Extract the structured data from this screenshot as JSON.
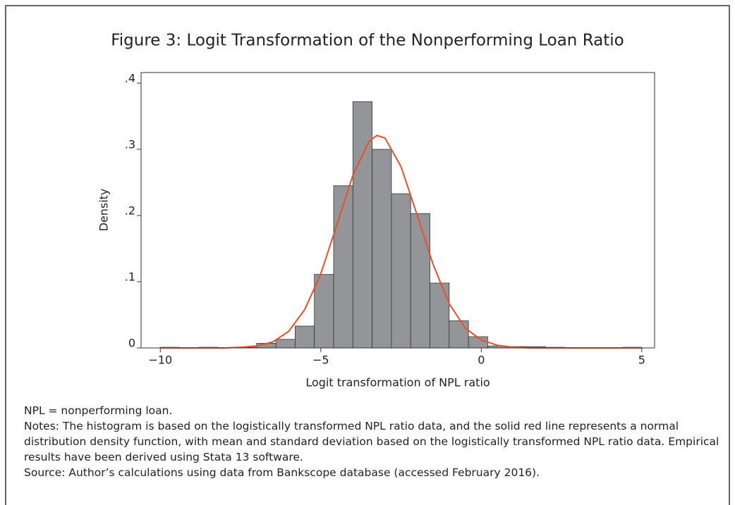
{
  "chart_data": {
    "type": "histogram",
    "title": "Figure 3: Logit Transformation of the Nonperforming Loan Ratio",
    "xlabel": "Logit transformation of NPL ratio",
    "ylabel": "Density",
    "bins": [
      -10,
      -9.4,
      -8.8,
      -8.2,
      -7.6,
      -7.0,
      -6.4,
      -5.8,
      -5.2,
      -4.6,
      -4.0,
      -3.4,
      -2.8,
      -2.2,
      -1.6,
      -1.0,
      -0.4,
      0.2,
      0.8,
      1.4,
      2.0,
      2.6,
      3.2,
      3.8,
      4.4,
      5.0
    ],
    "values": [
      0.001,
      0,
      0.001,
      0,
      0.001,
      0.007,
      0.013,
      0.033,
      0.111,
      0.245,
      0.372,
      0.3,
      0.233,
      0.203,
      0.098,
      0.041,
      0.017,
      0.003,
      0.002,
      0.002,
      0.001,
      0,
      0,
      0,
      0.001
    ],
    "color": "#939598",
    "curve": {
      "color": "#e8502b",
      "x": [
        -10,
        -9.5,
        -9,
        -8.5,
        -8,
        -7.5,
        -7,
        -6.5,
        -6,
        -5.5,
        -5,
        -4.5,
        -4,
        -3.5,
        -3.25,
        -3,
        -2.5,
        -2,
        -1.5,
        -1,
        -0.5,
        0,
        0.5,
        1,
        1.5,
        2,
        2.5,
        3,
        3.5,
        4,
        4.5,
        5
      ],
      "values": [
        0,
        0,
        0,
        0,
        0,
        0.001,
        0.003,
        0.009,
        0.025,
        0.058,
        0.112,
        0.186,
        0.261,
        0.312,
        0.321,
        0.317,
        0.274,
        0.201,
        0.126,
        0.067,
        0.03,
        0.012,
        0.004,
        0.001,
        0,
        0,
        0,
        0,
        0,
        0,
        0,
        0
      ]
    },
    "xlim": [
      -10.6,
      5.4
    ],
    "ylim": [
      0,
      0.416
    ],
    "xticks": [
      {
        "value": -10,
        "label": "−10"
      },
      {
        "value": -5,
        "label": "−5"
      },
      0,
      5
    ],
    "yticks": [
      0,
      {
        "value": 0.1,
        "label": ".1"
      },
      {
        "value": 0.2,
        "label": ".2"
      },
      {
        "value": 0.3,
        "label": ".3"
      },
      {
        "value": 0.4,
        "label": ".4"
      }
    ],
    "notes": [
      "NPL = nonperforming loan.",
      "Notes: The histogram is based on the logistically transformed NPL ratio data, and the solid red line represents a normal distribution density function, with mean and standard deviation based on the logistically transformed NPL ratio data. Empirical results have been derived using Stata 13 software.",
      "Source: Author’s calculations using data from Bankscope database (accessed February 2016)."
    ]
  }
}
